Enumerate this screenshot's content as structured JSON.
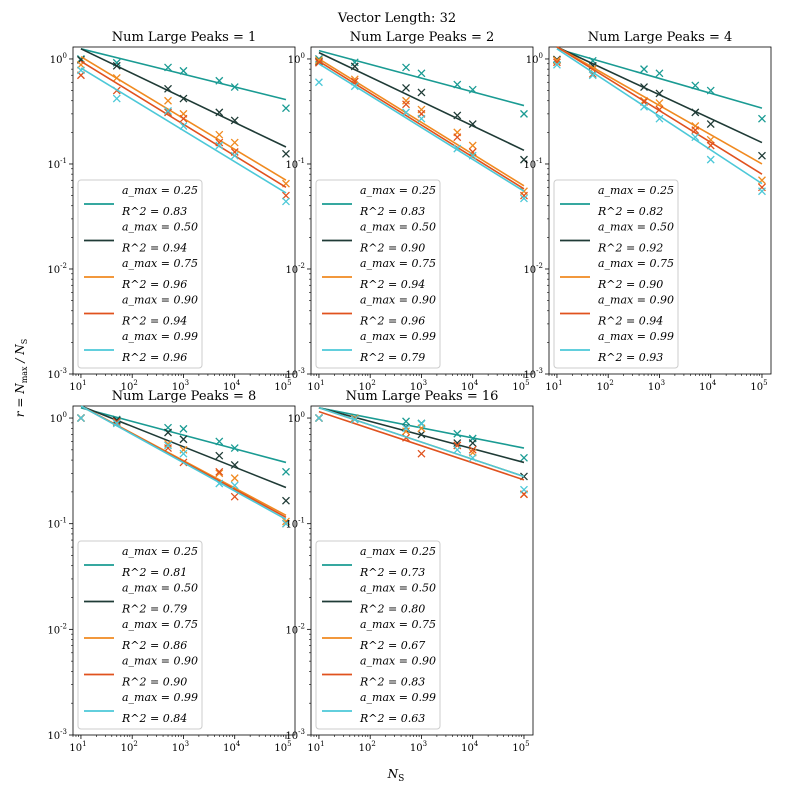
{
  "suptitle": "Vector Length: 32",
  "xlabel": "N_S",
  "ylabel": "r = N_max / N_S",
  "colors": {
    "0.25": "#1a9b93",
    "0.50": "#1f3b36",
    "0.75": "#f08a20",
    "0.90": "#e0521e",
    "0.99": "#4cc8d8"
  },
  "chart_data": [
    {
      "type": "scatter",
      "title": "Num Large Peaks = 1",
      "xscale": "log",
      "yscale": "log",
      "xlim": [
        7,
        150000
      ],
      "ylim": [
        0.001,
        1.3
      ],
      "x": [
        10,
        50,
        500,
        1000,
        5000,
        10000,
        100000
      ],
      "series": [
        {
          "name": "a_max = 0.25",
          "r2_label": "R^2 = 0.83",
          "color_key": "0.25",
          "values": [
            1.0,
            0.92,
            0.83,
            0.77,
            0.62,
            0.54,
            0.34
          ],
          "fit": [
            1.25,
            0.41
          ]
        },
        {
          "name": "a_max = 0.50",
          "r2_label": "R^2 = 0.94",
          "color_key": "0.50",
          "values": [
            0.98,
            0.86,
            0.52,
            0.42,
            0.31,
            0.26,
            0.125
          ],
          "fit": [
            1.25,
            0.145
          ]
        },
        {
          "name": "a_max = 0.75",
          "r2_label": "R^2 = 0.96",
          "color_key": "0.75",
          "values": [
            0.88,
            0.66,
            0.4,
            0.3,
            0.19,
            0.16,
            0.065
          ],
          "fit": [
            1.05,
            0.07
          ]
        },
        {
          "name": "a_max = 0.90",
          "r2_label": "R^2 = 0.94",
          "color_key": "0.90",
          "values": [
            0.7,
            0.5,
            0.31,
            0.27,
            0.16,
            0.13,
            0.05
          ],
          "fit": [
            0.95,
            0.06
          ]
        },
        {
          "name": "a_max = 0.99",
          "r2_label": "R^2 = 0.96",
          "color_key": "0.99",
          "values": [
            0.78,
            0.42,
            0.32,
            0.23,
            0.15,
            0.12,
            0.044
          ],
          "fit": [
            0.82,
            0.053
          ]
        }
      ]
    },
    {
      "type": "scatter",
      "title": "Num Large Peaks = 2",
      "xscale": "log",
      "yscale": "log",
      "xlim": [
        7,
        150000
      ],
      "ylim": [
        0.001,
        1.3
      ],
      "x": [
        10,
        50,
        500,
        1000,
        5000,
        10000,
        100000
      ],
      "series": [
        {
          "name": "a_max = 0.25",
          "r2_label": "R^2 = 0.83",
          "color_key": "0.25",
          "values": [
            1.0,
            0.93,
            0.83,
            0.73,
            0.57,
            0.51,
            0.3
          ],
          "fit": [
            1.2,
            0.36
          ]
        },
        {
          "name": "a_max = 0.50",
          "r2_label": "R^2 = 0.90",
          "color_key": "0.50",
          "values": [
            0.94,
            0.85,
            0.53,
            0.48,
            0.29,
            0.24,
            0.11
          ],
          "fit": [
            1.15,
            0.135
          ]
        },
        {
          "name": "a_max = 0.75",
          "r2_label": "R^2 = 0.94",
          "color_key": "0.75",
          "values": [
            0.97,
            0.64,
            0.4,
            0.33,
            0.2,
            0.15,
            0.055
          ],
          "fit": [
            1.0,
            0.062
          ]
        },
        {
          "name": "a_max = 0.90",
          "r2_label": "R^2 = 0.96",
          "color_key": "0.90",
          "values": [
            0.92,
            0.61,
            0.37,
            0.3,
            0.18,
            0.13,
            0.05
          ],
          "fit": [
            0.95,
            0.058
          ]
        },
        {
          "name": "a_max = 0.99",
          "r2_label": "R^2 = 0.79",
          "color_key": "0.99",
          "values": [
            0.6,
            0.55,
            0.31,
            0.27,
            0.14,
            0.12,
            0.047
          ],
          "fit": [
            0.9,
            0.055
          ]
        }
      ]
    },
    {
      "type": "scatter",
      "title": "Num Large Peaks = 4",
      "xscale": "log",
      "yscale": "log",
      "xlim": [
        7,
        150000
      ],
      "ylim": [
        0.001,
        1.3
      ],
      "x": [
        10,
        50,
        500,
        1000,
        5000,
        10000,
        100000
      ],
      "series": [
        {
          "name": "a_max = 0.25",
          "r2_label": "R^2 = 0.82",
          "color_key": "0.25",
          "values": [
            0.98,
            0.96,
            0.8,
            0.73,
            0.56,
            0.5,
            0.27
          ],
          "fit": [
            1.25,
            0.34
          ]
        },
        {
          "name": "a_max = 0.50",
          "r2_label": "R^2 = 0.92",
          "color_key": "0.50",
          "values": [
            0.99,
            0.86,
            0.54,
            0.47,
            0.31,
            0.24,
            0.12
          ],
          "fit": [
            1.3,
            0.16
          ]
        },
        {
          "name": "a_max = 0.75",
          "r2_label": "R^2 = 0.90",
          "color_key": "0.75",
          "values": [
            0.97,
            0.8,
            0.4,
            0.38,
            0.23,
            0.17,
            0.07
          ],
          "fit": [
            1.3,
            0.1
          ]
        },
        {
          "name": "a_max = 0.90",
          "r2_label": "R^2 = 0.94",
          "color_key": "0.90",
          "values": [
            0.93,
            0.72,
            0.39,
            0.33,
            0.21,
            0.15,
            0.06
          ],
          "fit": [
            1.3,
            0.08
          ]
        },
        {
          "name": "a_max = 0.99",
          "r2_label": "R^2 = 0.93",
          "color_key": "0.99",
          "values": [
            0.88,
            0.7,
            0.35,
            0.27,
            0.18,
            0.11,
            0.055
          ],
          "fit": [
            1.25,
            0.065
          ]
        }
      ]
    },
    {
      "type": "scatter",
      "title": "Num Large Peaks = 8",
      "xscale": "log",
      "yscale": "log",
      "xlim": [
        7,
        150000
      ],
      "ylim": [
        0.001,
        1.3
      ],
      "x": [
        10,
        50,
        500,
        1000,
        5000,
        10000,
        100000
      ],
      "series": [
        {
          "name": "a_max = 0.25",
          "r2_label": "R^2 = 0.81",
          "color_key": "0.25",
          "values": [
            1.0,
            0.97,
            0.81,
            0.79,
            0.6,
            0.52,
            0.31
          ],
          "fit": [
            1.25,
            0.38
          ]
        },
        {
          "name": "a_max = 0.50",
          "r2_label": "R^2 = 0.79",
          "color_key": "0.50",
          "values": [
            1.0,
            0.95,
            0.73,
            0.63,
            0.44,
            0.36,
            0.165
          ],
          "fit": [
            1.3,
            0.22
          ]
        },
        {
          "name": "a_max = 0.75",
          "r2_label": "R^2 = 0.86",
          "color_key": "0.75",
          "values": [
            1.0,
            0.9,
            0.57,
            0.5,
            0.3,
            0.27,
            0.105
          ],
          "fit": [
            1.3,
            0.12
          ]
        },
        {
          "name": "a_max = 0.90",
          "r2_label": "R^2 = 0.90",
          "color_key": "0.90",
          "values": [
            1.0,
            0.92,
            0.52,
            0.38,
            0.31,
            0.18,
            0.1
          ],
          "fit": [
            1.3,
            0.115
          ]
        },
        {
          "name": "a_max = 0.99",
          "r2_label": "R^2 = 0.84",
          "color_key": "0.99",
          "values": [
            1.0,
            0.89,
            0.55,
            0.46,
            0.24,
            0.23,
            0.1
          ],
          "fit": [
            1.3,
            0.11
          ]
        }
      ]
    },
    {
      "type": "scatter",
      "title": "Num Large Peaks = 16",
      "xscale": "log",
      "yscale": "log",
      "xlim": [
        7,
        150000
      ],
      "ylim": [
        0.001,
        1.3
      ],
      "x": [
        10,
        50,
        500,
        1000,
        5000,
        10000,
        100000
      ],
      "series": [
        {
          "name": "a_max = 0.25",
          "r2_label": "R^2 = 0.73",
          "color_key": "0.25",
          "values": [
            1.0,
            1.0,
            0.93,
            0.89,
            0.71,
            0.64,
            0.42
          ],
          "fit": [
            1.25,
            0.52
          ]
        },
        {
          "name": "a_max = 0.50",
          "r2_label": "R^2 = 0.80",
          "color_key": "0.50",
          "values": [
            1.0,
            0.98,
            0.81,
            0.7,
            0.58,
            0.58,
            0.28
          ],
          "fit": [
            1.25,
            0.38
          ]
        },
        {
          "name": "a_max = 0.75",
          "r2_label": "R^2 = 0.67",
          "color_key": "0.75",
          "values": [
            1.0,
            0.99,
            0.75,
            0.8,
            0.55,
            0.47,
            0.19
          ],
          "fit": [
            1.25,
            0.28
          ]
        },
        {
          "name": "a_max = 0.90",
          "r2_label": "R^2 = 0.83",
          "color_key": "0.90",
          "values": [
            1.0,
            0.97,
            0.65,
            0.46,
            0.55,
            0.5,
            0.19
          ],
          "fit": [
            1.15,
            0.26
          ]
        },
        {
          "name": "a_max = 0.99",
          "r2_label": "R^2 = 0.63",
          "color_key": "0.99",
          "values": [
            1.0,
            0.97,
            0.8,
            0.88,
            0.5,
            0.42,
            0.21
          ],
          "fit": [
            1.25,
            0.28
          ]
        }
      ]
    }
  ]
}
